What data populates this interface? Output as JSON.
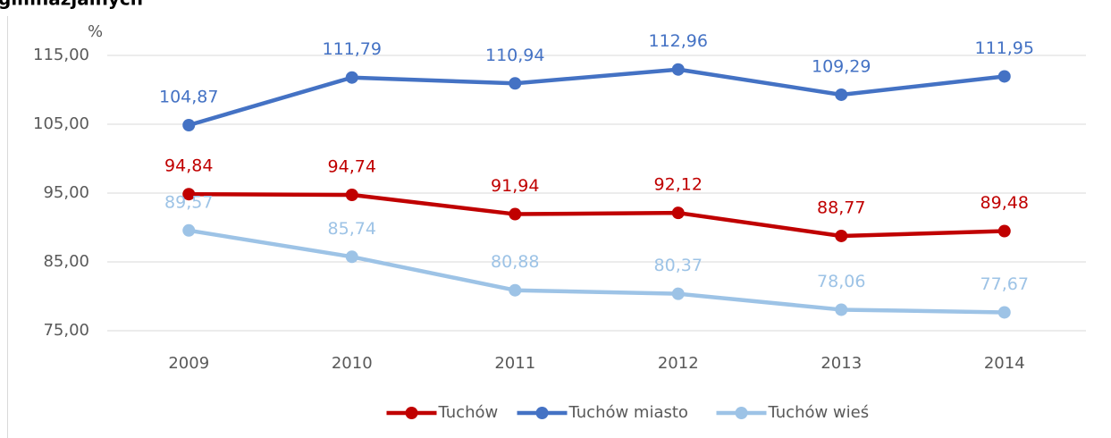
{
  "chart_data": {
    "type": "line",
    "title": "gimnazjalnych",
    "y_label": "%",
    "categories": [
      "2009",
      "2010",
      "2011",
      "2012",
      "2013",
      "2014"
    ],
    "series": [
      {
        "name": "Tuchów",
        "color": "#c00000",
        "values": [
          94.84,
          94.74,
          91.94,
          92.12,
          88.77,
          89.48
        ],
        "value_labels": [
          "94,84",
          "94,74",
          "91,94",
          "92,12",
          "88,77",
          "89,48"
        ]
      },
      {
        "name": "Tuchów miasto",
        "color": "#4472c4",
        "values": [
          104.87,
          111.79,
          110.94,
          112.96,
          109.29,
          111.95
        ],
        "value_labels": [
          "104,87",
          "111,79",
          "110,94",
          "112,96",
          "109,29",
          "111,95"
        ]
      },
      {
        "name": "Tuchów wieś",
        "color": "#9dc3e6",
        "values": [
          89.57,
          85.74,
          80.88,
          80.37,
          78.06,
          77.67
        ],
        "value_labels": [
          "89,57",
          "85,74",
          "80,88",
          "80,37",
          "78,06",
          "77,67"
        ]
      }
    ],
    "ylim": [
      75,
      115
    ],
    "yticks": [
      {
        "value": 75,
        "label": "75,00"
      },
      {
        "value": 85,
        "label": "85,00"
      },
      {
        "value": 95,
        "label": "95,00"
      },
      {
        "value": 105,
        "label": "105,00"
      },
      {
        "value": 115,
        "label": "115,00"
      }
    ],
    "grid": true,
    "legend": "bottom"
  }
}
